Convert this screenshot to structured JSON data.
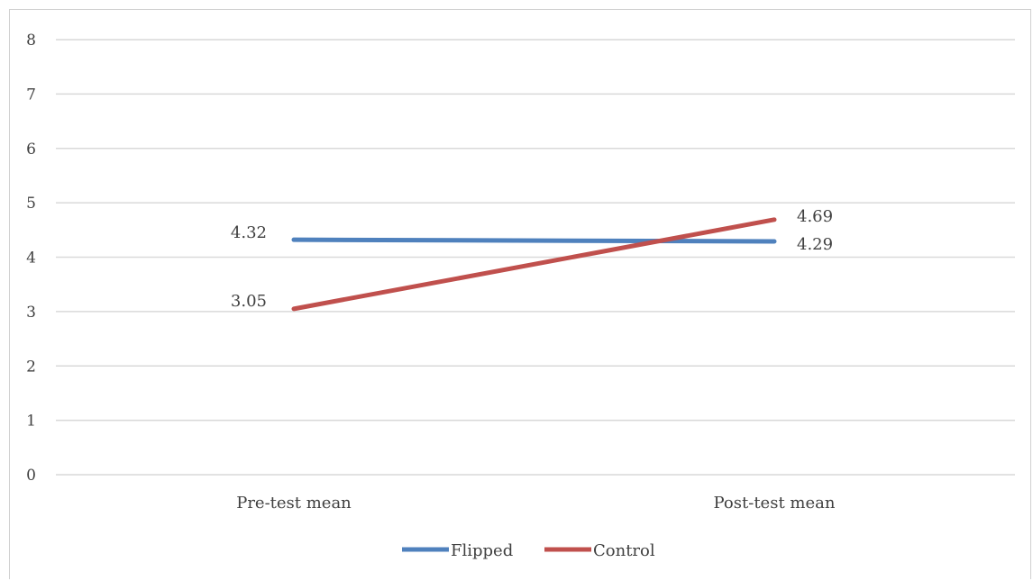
{
  "chart_data": {
    "type": "line",
    "categories": [
      "Pre-test mean",
      "Post-test mean"
    ],
    "series": [
      {
        "name": "Flipped",
        "values": [
          4.32,
          4.29
        ],
        "color": "#4f81bd",
        "labels": [
          "4.32",
          "4.29"
        ]
      },
      {
        "name": "Control",
        "values": [
          3.05,
          4.69
        ],
        "color": "#c0504d",
        "labels": [
          "3.05",
          "4.69"
        ]
      }
    ],
    "ylim": [
      0,
      8
    ],
    "yticks": [
      "0",
      "1",
      "2",
      "3",
      "4",
      "5",
      "6",
      "7",
      "8"
    ],
    "grid": true,
    "gridColor": "#d9d9d9",
    "legend_position": "bottom"
  }
}
